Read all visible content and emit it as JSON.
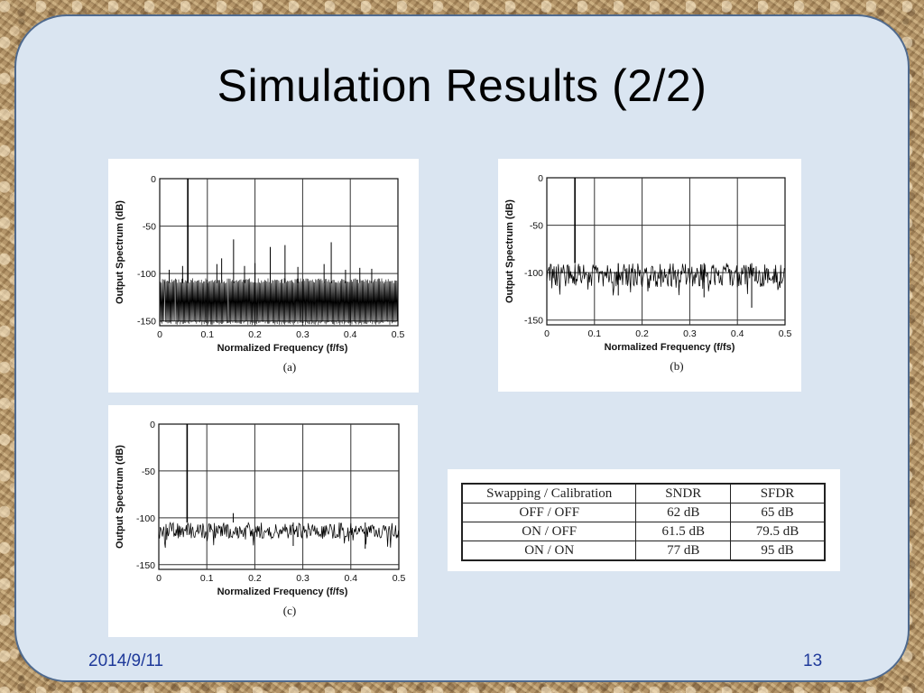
{
  "slide": {
    "title": "Simulation Results (2/2)",
    "date": "2014/9/11",
    "page_number": "13"
  },
  "chart_data": [
    {
      "type": "line",
      "id": "a",
      "caption": "(a)",
      "xlabel": "Normalized Frequency (f/fs)",
      "ylabel": "Output Spectrum (dB)",
      "xlim": [
        0,
        0.5
      ],
      "ylim": [
        -155,
        0
      ],
      "xticks": [
        "0",
        "0.1",
        "0.2",
        "0.3",
        "0.4",
        "0.5"
      ],
      "yticks": [
        "0",
        "-50",
        "-100",
        "-150"
      ],
      "grid": true,
      "signal": {
        "x": 0.059,
        "y": 0
      },
      "noise_floor_db": [
        -150,
        -110
      ],
      "spurs": [
        {
          "x": 0.02,
          "y": -96
        },
        {
          "x": 0.12,
          "y": -90
        },
        {
          "x": 0.13,
          "y": -84
        },
        {
          "x": 0.155,
          "y": -64
        },
        {
          "x": 0.178,
          "y": -92
        },
        {
          "x": 0.2,
          "y": -89
        },
        {
          "x": 0.232,
          "y": -72
        },
        {
          "x": 0.263,
          "y": -70
        },
        {
          "x": 0.29,
          "y": -93
        },
        {
          "x": 0.345,
          "y": -90
        },
        {
          "x": 0.36,
          "y": -67
        },
        {
          "x": 0.42,
          "y": -94
        },
        {
          "x": 0.445,
          "y": -95
        },
        {
          "x": 0.048,
          "y": -92
        },
        {
          "x": 0.39,
          "y": -96
        }
      ]
    },
    {
      "type": "line",
      "id": "b",
      "caption": "(b)",
      "xlabel": "Normalized Frequency (f/fs)",
      "ylabel": "Output Spectrum (dB)",
      "xlim": [
        0,
        0.5
      ],
      "ylim": [
        -155,
        0
      ],
      "xticks": [
        "0",
        "0.1",
        "0.2",
        "0.3",
        "0.4",
        "0.5"
      ],
      "yticks": [
        "0",
        "-50",
        "-100",
        "-150"
      ],
      "grid": true,
      "signal": {
        "x": 0.059,
        "y": 0
      },
      "noise_floor_db": [
        -115,
        -90
      ],
      "spurs": [
        {
          "x": 0.15,
          "y": -124
        },
        {
          "x": 0.33,
          "y": -126
        },
        {
          "x": 0.43,
          "y": -137
        }
      ]
    },
    {
      "type": "line",
      "id": "c",
      "caption": "(c)",
      "xlabel": "Normalized Frequency (f/fs)",
      "ylabel": "Output Spectrum (dB)",
      "xlim": [
        0,
        0.5
      ],
      "ylim": [
        -155,
        0
      ],
      "xticks": [
        "0",
        "0.1",
        "0.2",
        "0.3",
        "0.4",
        "0.5"
      ],
      "yticks": [
        "0",
        "-50",
        "-100",
        "-150"
      ],
      "grid": true,
      "signal": {
        "x": 0.059,
        "y": 0
      },
      "noise_floor_db": [
        -122,
        -105
      ],
      "spurs": [
        {
          "x": 0.155,
          "y": -95
        },
        {
          "x": 0.28,
          "y": -130
        },
        {
          "x": 0.43,
          "y": -133
        }
      ]
    },
    {
      "type": "table",
      "id": "results-table",
      "headers": [
        "Swapping / Calibration",
        "SNDR",
        "SFDR"
      ],
      "rows": [
        [
          "OFF / OFF",
          "62 dB",
          "65 dB"
        ],
        [
          "ON / OFF",
          "61.5 dB",
          "79.5 dB"
        ],
        [
          "ON / ON",
          "77 dB",
          "95 dB"
        ]
      ]
    }
  ],
  "colors": {
    "panel_bg": "#dae5f1",
    "panel_border": "#4f6a8e",
    "footer_text": "#1f3a9a"
  }
}
